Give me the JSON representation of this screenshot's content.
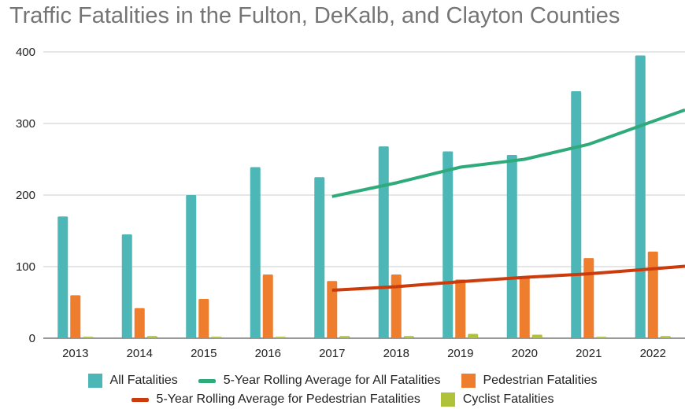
{
  "title": "Traffic Fatalities in the Fulton, DeKalb, and Clayton Counties",
  "chart_data": {
    "type": "bar",
    "title": "Traffic Fatalities in the Fulton, DeKalb, and Clayton Counties",
    "xlabel": "",
    "ylabel": "",
    "categories": [
      "2013",
      "2014",
      "2015",
      "2016",
      "2017",
      "2018",
      "2019",
      "2020",
      "2021",
      "2022"
    ],
    "ylim": [
      0,
      400
    ],
    "yticks": [
      "0",
      "100",
      "200",
      "300",
      "400"
    ],
    "grid": true,
    "legend_position": "bottom",
    "series": [
      {
        "name": "All Fatalities",
        "type": "bar",
        "color": "#4DB6B6",
        "values": [
          170,
          145,
          200,
          239,
          225,
          268,
          261,
          256,
          345,
          395
        ]
      },
      {
        "name": "Pedestrian Fatalities",
        "type": "bar",
        "color": "#EE7D2E",
        "values": [
          60,
          42,
          55,
          89,
          80,
          89,
          82,
          86,
          112,
          121
        ]
      },
      {
        "name": "Cyclist Fatalities",
        "type": "bar",
        "color": "#AFC23A",
        "values": [
          2,
          3,
          2,
          2,
          3,
          3,
          6,
          5,
          2,
          3
        ]
      },
      {
        "name": "5-Year Rolling Average for All Fatalities",
        "type": "line",
        "color": "#2EAA7B",
        "values": [
          null,
          null,
          null,
          null,
          198,
          217,
          239,
          250,
          271,
          303
        ]
      },
      {
        "name": "5-Year Rolling Average for Pedestrian Fatalities",
        "type": "line",
        "color": "#CC3B0C",
        "values": [
          null,
          null,
          null,
          null,
          67,
          72,
          79,
          85,
          90,
          97
        ]
      }
    ]
  },
  "legend": {
    "row1": [
      {
        "label": "All Fatalities",
        "icon": "box",
        "color": "#4DB6B6"
      },
      {
        "label": "5-Year Rolling Average for All Fatalities",
        "icon": "line",
        "color": "#2EAA7B"
      },
      {
        "label": "Pedestrian Fatalities",
        "icon": "box",
        "color": "#EE7D2E"
      }
    ],
    "row2": [
      {
        "label": "5-Year Rolling Average for Pedestrian Fatalities",
        "icon": "line",
        "color": "#CC3B0C"
      },
      {
        "label": "Cyclist Fatalities",
        "icon": "box",
        "color": "#AFC23A"
      }
    ]
  }
}
